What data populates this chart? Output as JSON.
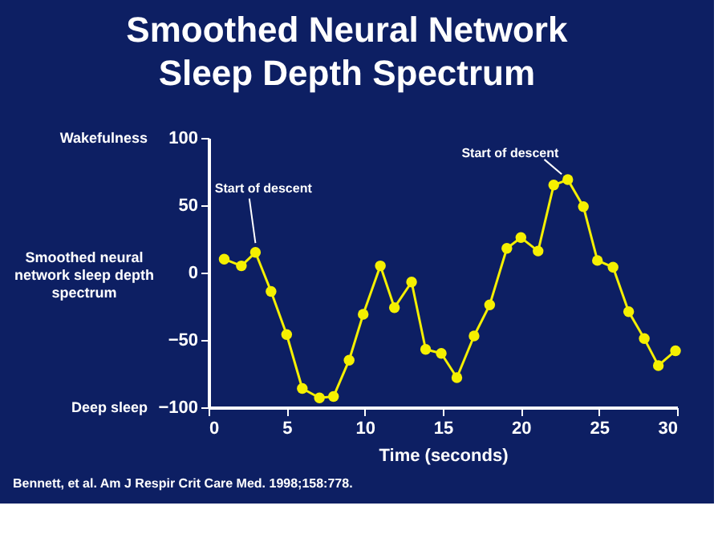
{
  "chart_data": {
    "type": "line",
    "title": "Smoothed Neural Network\nSleep Depth Spectrum",
    "xlabel": "Time (seconds)",
    "ylabel": "Smoothed neural network sleep depth spectrum",
    "x": [
      1.0,
      2.1,
      3.0,
      4.0,
      5.0,
      6.0,
      7.1,
      8.0,
      9.0,
      9.9,
      11.0,
      11.9,
      13.0,
      13.9,
      14.9,
      15.9,
      17.0,
      18.0,
      19.1,
      20.0,
      21.1,
      22.1,
      23.0,
      24.0,
      24.9,
      25.9,
      26.9,
      27.9,
      28.8,
      29.9
    ],
    "series": [
      {
        "color": "#f5f000",
        "values": [
          10,
          5,
          15,
          -14,
          -46,
          -86,
          -93,
          -92,
          -65,
          -31,
          5,
          -26,
          -7,
          -57,
          -60,
          -78,
          -47,
          -24,
          18,
          26,
          16,
          65,
          69,
          49,
          9,
          4,
          -29,
          -49,
          -69,
          -58
        ]
      }
    ],
    "xlim": [
      0,
      30
    ],
    "xticks": [
      0,
      5,
      10,
      15,
      20,
      25,
      30
    ],
    "ylim": [
      -100,
      100
    ],
    "yticks": [
      -100,
      -50,
      0,
      50,
      100
    ],
    "grid": false,
    "marker": "circle",
    "line_style": "solid",
    "annotations": [
      {
        "text": "Start of descent",
        "x": 3.0,
        "y": 15
      },
      {
        "text": "Start of descent",
        "x": 23.0,
        "y": 69
      },
      "Wakefulness",
      "Deep sleep",
      "Bennett, et al. Am J Respir Crit Care Med. 1998;158:778."
    ]
  }
}
